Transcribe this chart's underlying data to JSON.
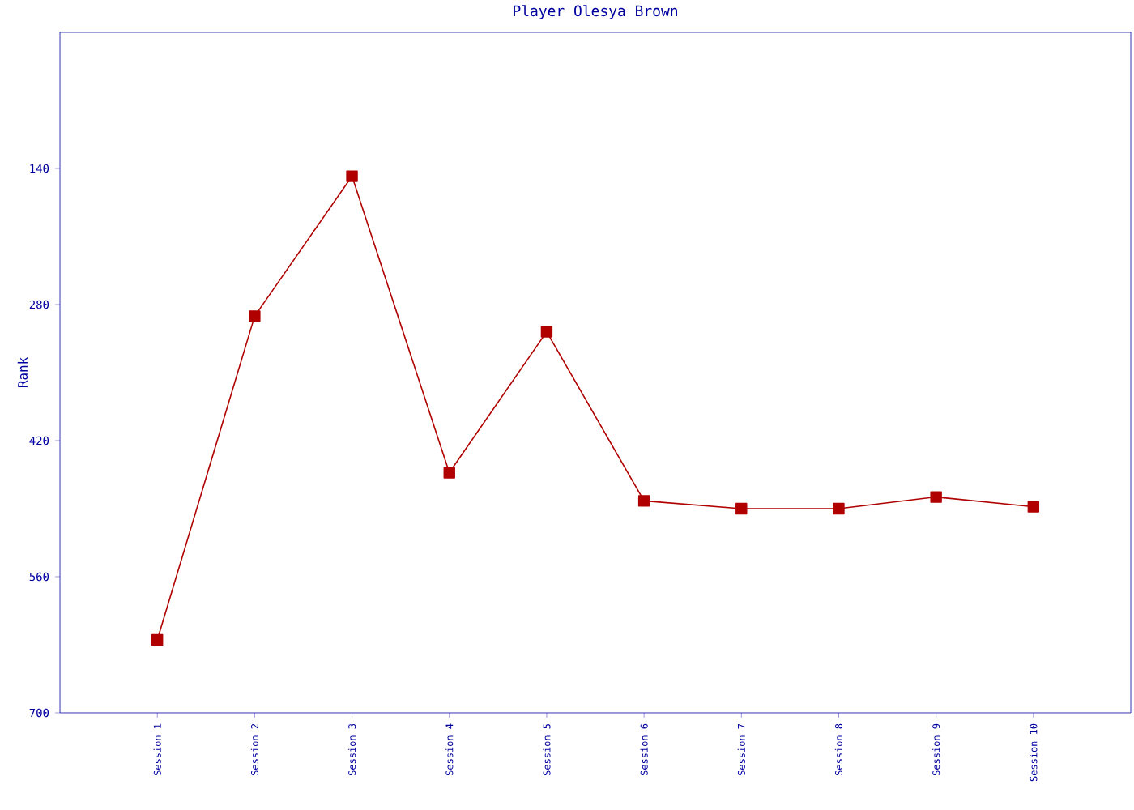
{
  "chart_data": {
    "type": "line",
    "title": "Player Olesya Brown",
    "ylabel": "Rank",
    "categories": [
      "Session 1",
      "Session 2",
      "Session 3",
      "Session 4",
      "Session 5",
      "Session 6",
      "Session 7",
      "Session 8",
      "Session 9",
      "Session 10"
    ],
    "series": [
      {
        "color": "#b00000",
        "values": [
          625,
          292,
          148,
          453,
          308,
          482,
          490,
          490,
          478,
          488
        ]
      }
    ],
    "ylim": [
      700,
      0
    ],
    "yticks": [
      140,
      280,
      420,
      560,
      700
    ],
    "marker": "square",
    "line_style": "solid",
    "grid": false
  }
}
